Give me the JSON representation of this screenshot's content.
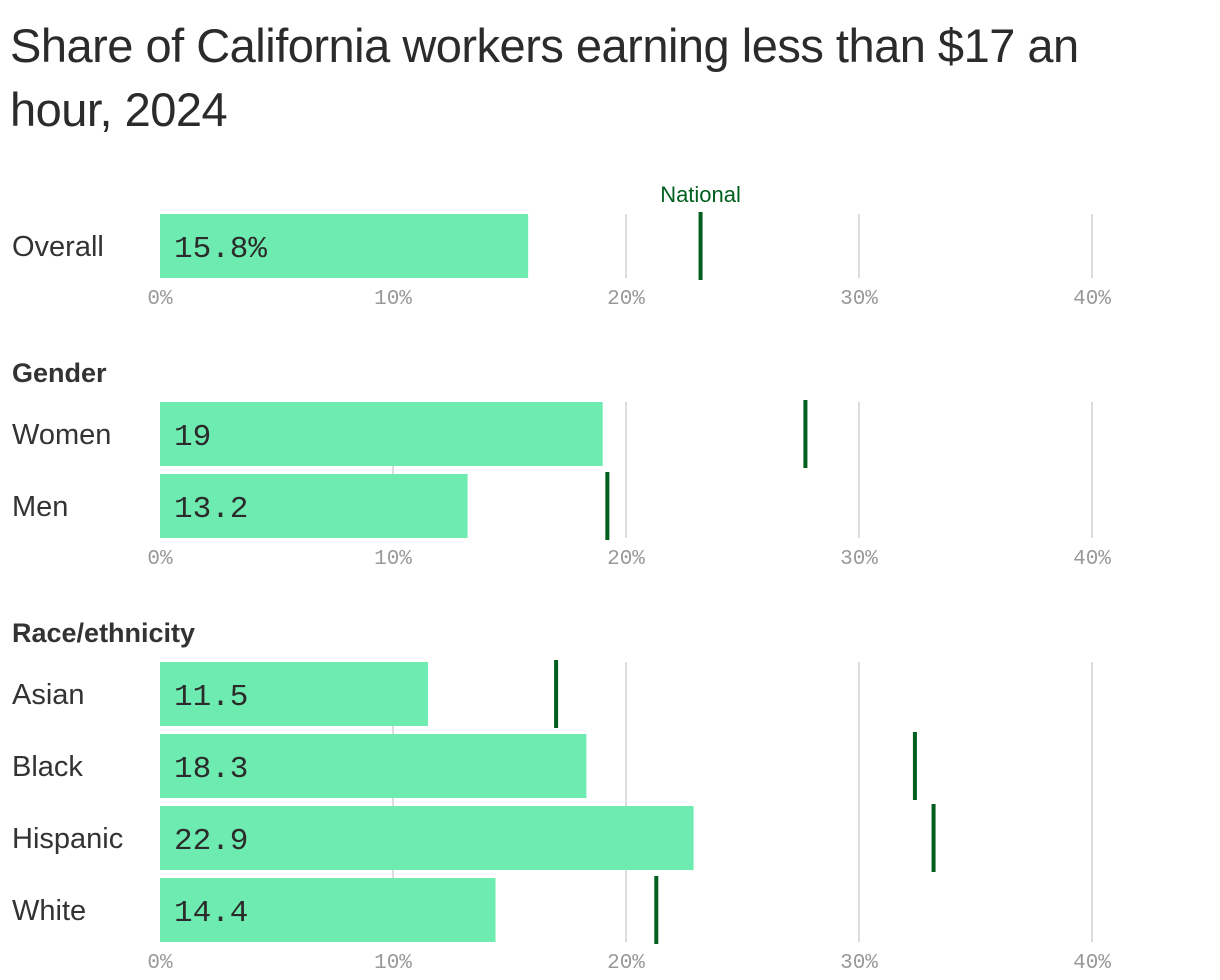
{
  "title": "Share of California workers earning less than $17 an hour, 2024",
  "colors": {
    "bar": "#6eebb0",
    "national": "#005f1e",
    "grid": "#dddddd",
    "tick": "#999999",
    "text": "#333333"
  },
  "chart_data": {
    "type": "bar",
    "orientation": "horizontal",
    "title": "Share of California workers earning less than $17 an hour, 2024",
    "xlim": [
      0,
      40
    ],
    "ticks": [
      "0%",
      "10%",
      "20%",
      "30%",
      "40%"
    ],
    "grid": true,
    "marker_label": "National",
    "groups": [
      {
        "title": "",
        "rows": [
          {
            "label": "Overall",
            "value": 15.8,
            "display": "15.8%",
            "national": 23.2
          }
        ]
      },
      {
        "title": "Gender",
        "rows": [
          {
            "label": "Women",
            "value": 19.0,
            "display": "19",
            "national": 27.7
          },
          {
            "label": "Men",
            "value": 13.2,
            "display": "13.2",
            "national": 19.2
          }
        ]
      },
      {
        "title": "Race/ethnicity",
        "rows": [
          {
            "label": "Asian",
            "value": 11.5,
            "display": "11.5",
            "national": 17.0
          },
          {
            "label": "Black",
            "value": 18.3,
            "display": "18.3",
            "national": 32.4
          },
          {
            "label": "Hispanic",
            "value": 22.9,
            "display": "22.9",
            "national": 33.2
          },
          {
            "label": "White",
            "value": 14.4,
            "display": "14.4",
            "national": 21.3
          }
        ]
      }
    ]
  }
}
